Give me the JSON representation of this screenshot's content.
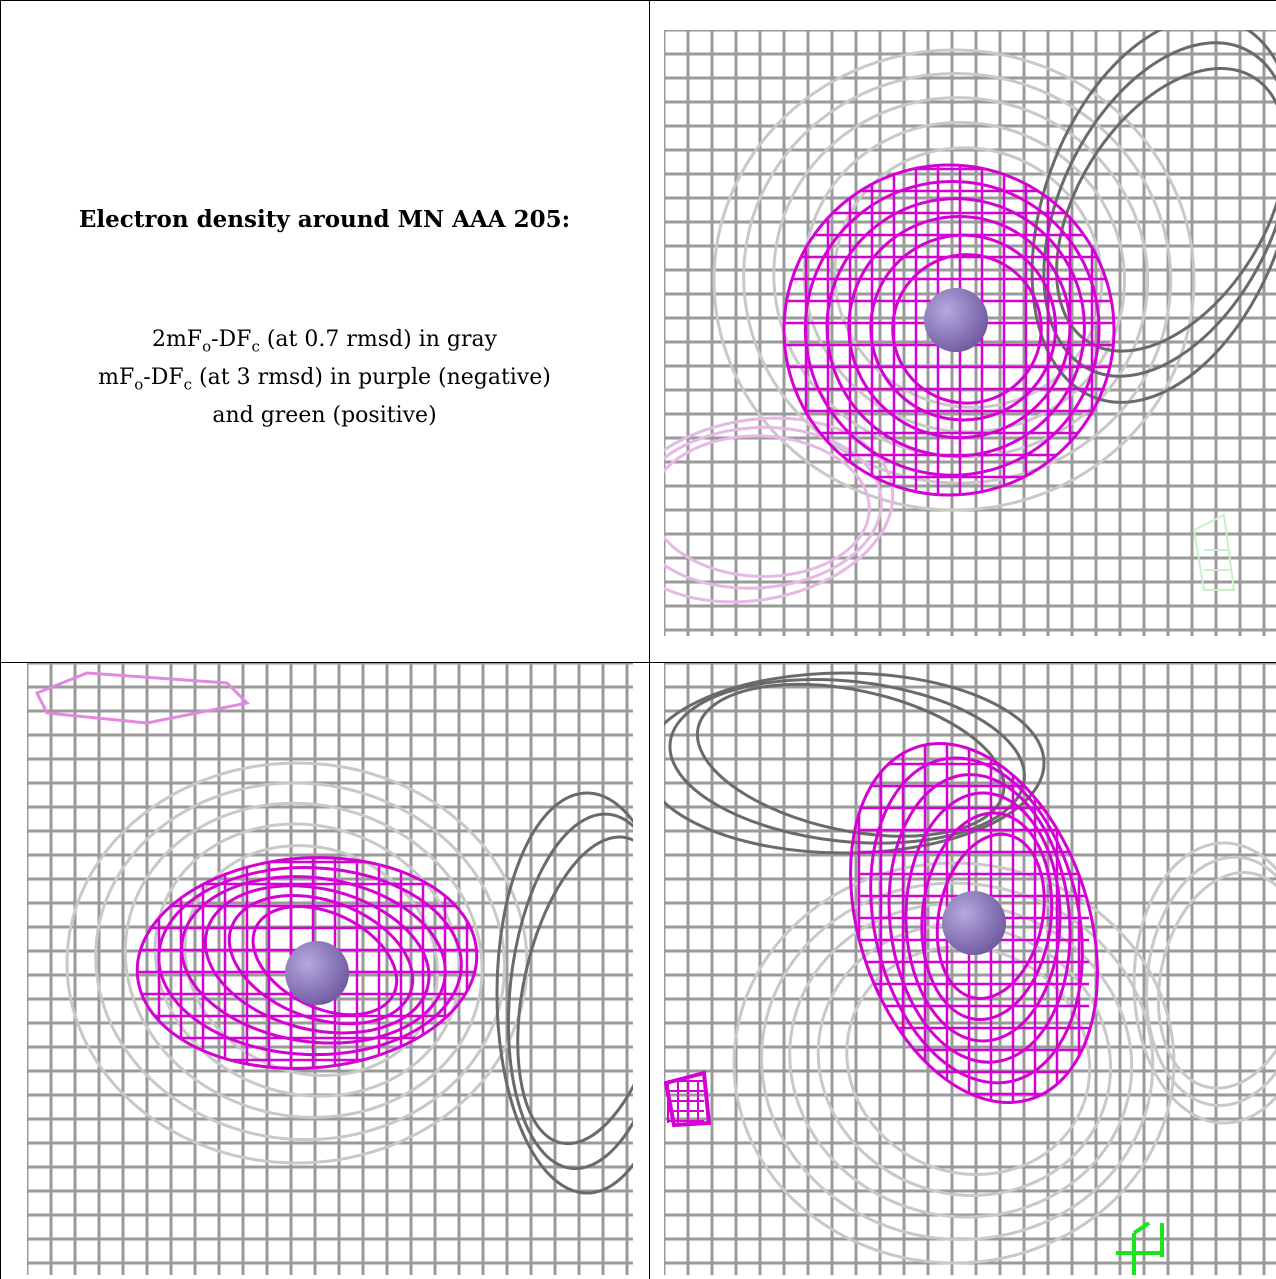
{
  "caption": {
    "title": "Electron density around MN AAA 205:",
    "line1": {
      "pre": "2mF",
      "sub1": "o",
      "mid": "-DF",
      "sub2": "c",
      "post": " (at 0.7 rmsd) in gray"
    },
    "line2": {
      "pre": "mF",
      "sub1": "o",
      "mid": "-DF",
      "sub2": "c",
      "post": " (at 3 rmsd) in purple (negative)"
    },
    "line3": "and green (positive)"
  },
  "colors": {
    "grid_gray": "#9a9a9a",
    "grid_dark": "#6a6a6a",
    "grid_light": "#c8c8c8",
    "negative_purple": "#d400d4",
    "positive_green": "#19e619",
    "atom": "#6f5aa0"
  },
  "panels": [
    {
      "id": "top-right",
      "icons": [
        "mesh-icon",
        "atom-icon"
      ]
    },
    {
      "id": "bottom-left",
      "icons": [
        "mesh-icon",
        "atom-icon"
      ]
    },
    {
      "id": "bottom-right",
      "icons": [
        "mesh-icon",
        "atom-icon",
        "axes-icon"
      ]
    }
  ]
}
